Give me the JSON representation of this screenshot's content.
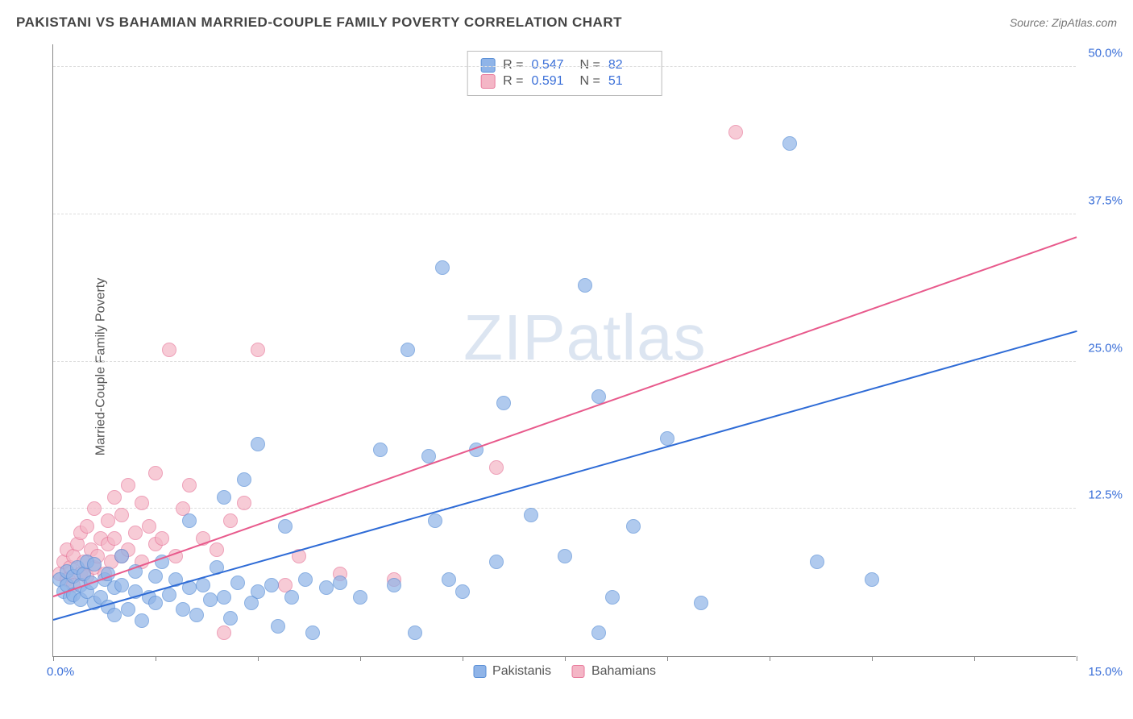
{
  "header": {
    "title": "PAKISTANI VS BAHAMIAN MARRIED-COUPLE FAMILY POVERTY CORRELATION CHART",
    "source_prefix": "Source: ",
    "source_name": "ZipAtlas.com"
  },
  "chart": {
    "type": "scatter",
    "y_axis_title": "Married-Couple Family Poverty",
    "xlim": [
      0,
      15
    ],
    "ylim": [
      0,
      52
    ],
    "x_tick_positions": [
      0,
      1.5,
      3,
      4.5,
      6,
      7.5,
      9,
      10.5,
      12,
      13.5,
      15
    ],
    "x_tick_label_left": "0.0%",
    "x_tick_label_right": "15.0%",
    "y_gridlines": [
      12.5,
      25.0,
      37.5,
      50.0
    ],
    "y_tick_labels": [
      "12.5%",
      "25.0%",
      "37.5%",
      "50.0%"
    ],
    "background_color": "#ffffff",
    "grid_color": "#dddddd",
    "axis_color": "#888888",
    "tick_text_color": "#3a6fd8",
    "point_radius": 9,
    "point_fill_opacity": 0.35,
    "point_stroke_opacity": 0.9,
    "watermark_text_a": "ZIP",
    "watermark_text_b": "atlas",
    "series": {
      "pakistanis": {
        "label": "Pakistanis",
        "color_fill": "#8fb4e8",
        "color_stroke": "#5a8fd6",
        "trend_color": "#2e6bd6",
        "trend_start": [
          0,
          3.0
        ],
        "trend_end": [
          15,
          27.5
        ],
        "points": [
          [
            0.1,
            6.5
          ],
          [
            0.15,
            5.5
          ],
          [
            0.2,
            6.0
          ],
          [
            0.2,
            7.2
          ],
          [
            0.25,
            5.0
          ],
          [
            0.3,
            6.8
          ],
          [
            0.3,
            5.2
          ],
          [
            0.35,
            7.5
          ],
          [
            0.4,
            6.0
          ],
          [
            0.4,
            4.8
          ],
          [
            0.45,
            7.0
          ],
          [
            0.5,
            5.5
          ],
          [
            0.5,
            8.0
          ],
          [
            0.55,
            6.2
          ],
          [
            0.6,
            4.5
          ],
          [
            0.6,
            7.8
          ],
          [
            0.7,
            5.0
          ],
          [
            0.75,
            6.5
          ],
          [
            0.8,
            4.2
          ],
          [
            0.8,
            7.0
          ],
          [
            0.9,
            5.8
          ],
          [
            0.9,
            3.5
          ],
          [
            1.0,
            6.0
          ],
          [
            1.0,
            8.5
          ],
          [
            1.1,
            4.0
          ],
          [
            1.2,
            5.5
          ],
          [
            1.2,
            7.2
          ],
          [
            1.3,
            3.0
          ],
          [
            1.4,
            5.0
          ],
          [
            1.5,
            6.8
          ],
          [
            1.5,
            4.5
          ],
          [
            1.6,
            8.0
          ],
          [
            1.7,
            5.2
          ],
          [
            1.8,
            6.5
          ],
          [
            1.9,
            4.0
          ],
          [
            2.0,
            5.8
          ],
          [
            2.0,
            11.5
          ],
          [
            2.1,
            3.5
          ],
          [
            2.2,
            6.0
          ],
          [
            2.3,
            4.8
          ],
          [
            2.4,
            7.5
          ],
          [
            2.5,
            5.0
          ],
          [
            2.5,
            13.5
          ],
          [
            2.6,
            3.2
          ],
          [
            2.7,
            6.2
          ],
          [
            2.8,
            15.0
          ],
          [
            2.9,
            4.5
          ],
          [
            3.0,
            5.5
          ],
          [
            3.0,
            18.0
          ],
          [
            3.2,
            6.0
          ],
          [
            3.3,
            2.5
          ],
          [
            3.4,
            11.0
          ],
          [
            3.5,
            5.0
          ],
          [
            3.7,
            6.5
          ],
          [
            3.8,
            2.0
          ],
          [
            4.0,
            5.8
          ],
          [
            4.2,
            6.2
          ],
          [
            4.5,
            5.0
          ],
          [
            4.8,
            17.5
          ],
          [
            5.0,
            6.0
          ],
          [
            5.2,
            26.0
          ],
          [
            5.3,
            2.0
          ],
          [
            5.5,
            17.0
          ],
          [
            5.6,
            11.5
          ],
          [
            5.7,
            33.0
          ],
          [
            5.8,
            6.5
          ],
          [
            6.0,
            5.5
          ],
          [
            6.2,
            17.5
          ],
          [
            6.5,
            8.0
          ],
          [
            6.6,
            21.5
          ],
          [
            7.0,
            12.0
          ],
          [
            7.5,
            8.5
          ],
          [
            7.8,
            31.5
          ],
          [
            8.0,
            22.0
          ],
          [
            8.0,
            2.0
          ],
          [
            8.2,
            5.0
          ],
          [
            8.5,
            11.0
          ],
          [
            9.0,
            18.5
          ],
          [
            9.5,
            4.5
          ],
          [
            10.8,
            43.5
          ],
          [
            11.2,
            8.0
          ],
          [
            12.0,
            6.5
          ]
        ]
      },
      "bahamians": {
        "label": "Bahamians",
        "color_fill": "#f4b6c6",
        "color_stroke": "#e87a9c",
        "trend_color": "#e85a8c",
        "trend_start": [
          0,
          5.0
        ],
        "trend_end": [
          15,
          35.5
        ],
        "points": [
          [
            0.1,
            7.0
          ],
          [
            0.15,
            8.0
          ],
          [
            0.2,
            6.5
          ],
          [
            0.2,
            9.0
          ],
          [
            0.25,
            7.5
          ],
          [
            0.3,
            8.5
          ],
          [
            0.3,
            6.0
          ],
          [
            0.35,
            9.5
          ],
          [
            0.4,
            7.0
          ],
          [
            0.4,
            10.5
          ],
          [
            0.45,
            8.0
          ],
          [
            0.5,
            6.8
          ],
          [
            0.5,
            11.0
          ],
          [
            0.55,
            9.0
          ],
          [
            0.6,
            7.5
          ],
          [
            0.6,
            12.5
          ],
          [
            0.65,
            8.5
          ],
          [
            0.7,
            10.0
          ],
          [
            0.75,
            7.0
          ],
          [
            0.8,
            11.5
          ],
          [
            0.8,
            9.5
          ],
          [
            0.85,
            8.0
          ],
          [
            0.9,
            13.5
          ],
          [
            0.9,
            10.0
          ],
          [
            1.0,
            8.5
          ],
          [
            1.0,
            12.0
          ],
          [
            1.1,
            9.0
          ],
          [
            1.1,
            14.5
          ],
          [
            1.2,
            10.5
          ],
          [
            1.3,
            8.0
          ],
          [
            1.3,
            13.0
          ],
          [
            1.4,
            11.0
          ],
          [
            1.5,
            9.5
          ],
          [
            1.5,
            15.5
          ],
          [
            1.6,
            10.0
          ],
          [
            1.7,
            26.0
          ],
          [
            1.8,
            8.5
          ],
          [
            1.9,
            12.5
          ],
          [
            2.0,
            14.5
          ],
          [
            2.2,
            10.0
          ],
          [
            2.4,
            9.0
          ],
          [
            2.5,
            2.0
          ],
          [
            2.6,
            11.5
          ],
          [
            2.8,
            13.0
          ],
          [
            3.0,
            26.0
          ],
          [
            3.4,
            6.0
          ],
          [
            3.6,
            8.5
          ],
          [
            4.2,
            7.0
          ],
          [
            5.0,
            6.5
          ],
          [
            6.5,
            16.0
          ],
          [
            10.0,
            44.5
          ]
        ]
      }
    },
    "stat_box": {
      "rows": [
        {
          "series": "pakistanis",
          "r_label": "R =",
          "r_val": "0.547",
          "n_label": "N =",
          "n_val": "82"
        },
        {
          "series": "bahamians",
          "r_label": "R =",
          "r_val": "0.591",
          "n_label": "N =",
          "n_val": "51"
        }
      ]
    }
  }
}
